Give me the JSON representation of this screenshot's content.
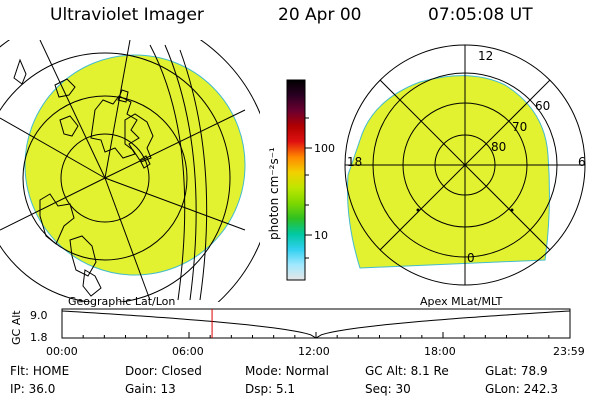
{
  "header": {
    "instrument": "Ultraviolet Imager",
    "date": "20 Apr 00",
    "time": "07:05:08 UT"
  },
  "colorbar": {
    "unit_label": "photon cm⁻²s⁻¹",
    "ticks": [
      "100",
      "10"
    ],
    "colors": [
      "#000000",
      "#2a0022",
      "#6b0030",
      "#b00000",
      "#e01010",
      "#ff8800",
      "#f2d000",
      "#bfe600",
      "#7fd800",
      "#30c020",
      "#00c8a0",
      "#30d0f0",
      "#a0e8ff",
      "#e6e6e6"
    ]
  },
  "left_map": {
    "caption": "Geographic Lat/Lon",
    "fill_color": "#e2f230"
  },
  "right_map": {
    "caption": "Apex MLat/MLT",
    "fill_color": "#e2f230",
    "lat_labels": [
      "60",
      "70",
      "80"
    ],
    "mlt_labels": {
      "top": "12",
      "left": "18",
      "right": "6",
      "bottom": "0"
    }
  },
  "altitude_plot": {
    "ylabel": "GC Alt",
    "y_ticks": [
      "9.0",
      "1.8"
    ],
    "x_ticks": [
      "00:00",
      "06:00",
      "12:00",
      "18:00",
      "23:59"
    ],
    "marker_hour": 7.09,
    "marker_color": "#dd0000"
  },
  "status": [
    {
      "label": "Flt:",
      "value": "HOME"
    },
    {
      "label": "Door:",
      "value": "Closed"
    },
    {
      "label": "Mode:",
      "value": "Normal"
    },
    {
      "label": "GC Alt:",
      "value": "8.1 Re"
    },
    {
      "label": "GLat:",
      "value": "78.9"
    },
    {
      "label": "IP:",
      "value": "36.0"
    },
    {
      "label": "Gain:",
      "value": "13"
    },
    {
      "label": "Dsp:",
      "value": "5.1"
    },
    {
      "label": "Seq:",
      "value": "30"
    },
    {
      "label": "GLon:",
      "value": "242.3"
    }
  ]
}
